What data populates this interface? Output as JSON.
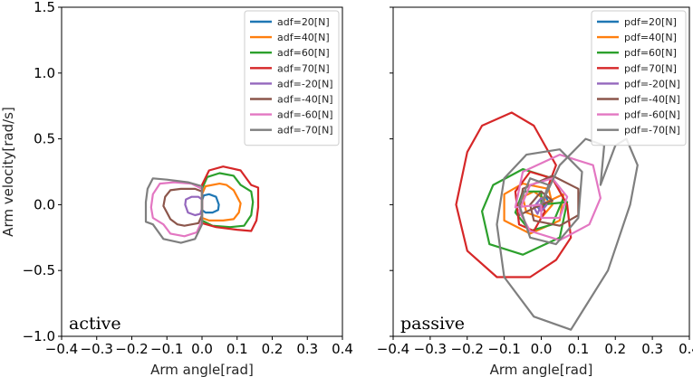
{
  "colors": {
    "series": [
      "#1f77b4",
      "#ff7f0e",
      "#2ca02c",
      "#d62728",
      "#9467bd",
      "#8c564b",
      "#e377c2",
      "#7f7f7f"
    ],
    "axis": "#000000",
    "legend_border": "#cccccc"
  },
  "chart_data": [
    {
      "type": "line",
      "panel_label": "active",
      "xlabel": "Arm angle[rad]",
      "ylabel": "Arm velocity[rad/s]",
      "xlim": [
        -0.4,
        0.4
      ],
      "ylim": [
        -1.0,
        1.5
      ],
      "xticks": [
        "−0.4",
        "−0.3",
        "−0.2",
        "−0.1",
        "0.0",
        "0.1",
        "0.2",
        "0.3",
        "0.4"
      ],
      "yticks": [
        "−1.0",
        "−0.5",
        "0.0",
        "0.5",
        "1.0",
        "1.5"
      ],
      "legend_position": "top-right",
      "grid": false,
      "series": [
        {
          "name": "adf=20[N]",
          "points": [
            [
              0.0,
              -0.04
            ],
            [
              0.0,
              0.03
            ],
            [
              0.005,
              0.07
            ],
            [
              0.02,
              0.08
            ],
            [
              0.04,
              0.06
            ],
            [
              0.048,
              0.0
            ],
            [
              0.046,
              -0.04
            ],
            [
              0.03,
              -0.06
            ],
            [
              0.01,
              -0.06
            ],
            [
              0.0,
              -0.04
            ]
          ]
        },
        {
          "name": "adf=40[N]",
          "points": [
            [
              0.0,
              -0.1
            ],
            [
              0.0,
              0.08
            ],
            [
              0.01,
              0.14
            ],
            [
              0.05,
              0.16
            ],
            [
              0.07,
              0.15
            ],
            [
              0.09,
              0.11
            ],
            [
              0.1,
              0.06
            ],
            [
              0.11,
              0.01
            ],
            [
              0.105,
              -0.06
            ],
            [
              0.09,
              -0.11
            ],
            [
              0.06,
              -0.12
            ],
            [
              0.02,
              -0.12
            ],
            [
              0.0,
              -0.1
            ]
          ]
        },
        {
          "name": "adf=60[N]",
          "points": [
            [
              0.0,
              -0.12
            ],
            [
              0.0,
              0.12
            ],
            [
              0.015,
              0.21
            ],
            [
              0.05,
              0.24
            ],
            [
              0.09,
              0.22
            ],
            [
              0.11,
              0.15
            ],
            [
              0.14,
              0.1
            ],
            [
              0.145,
              0.02
            ],
            [
              0.14,
              -0.08
            ],
            [
              0.12,
              -0.16
            ],
            [
              0.08,
              -0.17
            ],
            [
              0.03,
              -0.16
            ],
            [
              0.0,
              -0.12
            ]
          ]
        },
        {
          "name": "adf=70[N]",
          "points": [
            [
              0.0,
              -0.14
            ],
            [
              0.0,
              0.15
            ],
            [
              0.02,
              0.26
            ],
            [
              0.06,
              0.29
            ],
            [
              0.11,
              0.26
            ],
            [
              0.14,
              0.15
            ],
            [
              0.16,
              0.13
            ],
            [
              0.16,
              -0.02
            ],
            [
              0.155,
              -0.12
            ],
            [
              0.14,
              -0.2
            ],
            [
              0.1,
              -0.19
            ],
            [
              0.04,
              -0.17
            ],
            [
              0.0,
              -0.14
            ]
          ]
        },
        {
          "name": "adf=-20[N]",
          "points": [
            [
              0.0,
              0.04
            ],
            [
              0.0,
              -0.03
            ],
            [
              -0.005,
              -0.07
            ],
            [
              -0.02,
              -0.08
            ],
            [
              -0.04,
              -0.06
            ],
            [
              -0.048,
              0.0
            ],
            [
              -0.046,
              0.04
            ],
            [
              -0.03,
              0.06
            ],
            [
              -0.01,
              0.06
            ],
            [
              0.0,
              0.04
            ]
          ]
        },
        {
          "name": "adf=-40[N]",
          "points": [
            [
              0.0,
              0.1
            ],
            [
              0.0,
              -0.08
            ],
            [
              -0.01,
              -0.14
            ],
            [
              -0.05,
              -0.16
            ],
            [
              -0.07,
              -0.15
            ],
            [
              -0.09,
              -0.11
            ],
            [
              -0.1,
              -0.06
            ],
            [
              -0.11,
              -0.01
            ],
            [
              -0.105,
              0.06
            ],
            [
              -0.09,
              0.11
            ],
            [
              -0.06,
              0.12
            ],
            [
              -0.02,
              0.12
            ],
            [
              0.0,
              0.1
            ]
          ]
        },
        {
          "name": "adf=-60[N]",
          "points": [
            [
              0.0,
              0.12
            ],
            [
              0.0,
              -0.12
            ],
            [
              -0.015,
              -0.21
            ],
            [
              -0.05,
              -0.24
            ],
            [
              -0.09,
              -0.22
            ],
            [
              -0.11,
              -0.15
            ],
            [
              -0.14,
              -0.1
            ],
            [
              -0.145,
              -0.02
            ],
            [
              -0.14,
              0.08
            ],
            [
              -0.12,
              0.16
            ],
            [
              -0.08,
              0.17
            ],
            [
              -0.03,
              0.16
            ],
            [
              0.0,
              0.12
            ]
          ]
        },
        {
          "name": "adf=-70[N]",
          "points": [
            [
              0.0,
              0.14
            ],
            [
              0.0,
              -0.15
            ],
            [
              -0.02,
              -0.26
            ],
            [
              -0.06,
              -0.29
            ],
            [
              -0.11,
              -0.26
            ],
            [
              -0.14,
              -0.15
            ],
            [
              -0.16,
              -0.13
            ],
            [
              -0.16,
              0.02
            ],
            [
              -0.155,
              0.12
            ],
            [
              -0.14,
              0.2
            ],
            [
              -0.1,
              0.19
            ],
            [
              -0.04,
              0.17
            ],
            [
              0.0,
              0.14
            ]
          ]
        }
      ]
    },
    {
      "type": "line",
      "panel_label": "passive",
      "xlabel": "Arm angle[rad]",
      "ylabel": "",
      "xlim": [
        -0.4,
        0.4
      ],
      "ylim": [
        -1.0,
        1.5
      ],
      "xticks": [
        "−0.4",
        "−0.3",
        "−0.2",
        "−0.1",
        "0.0",
        "0.1",
        "0.2",
        "0.3",
        "0.4"
      ],
      "yticks": [],
      "legend_position": "top-right",
      "grid": false,
      "series": [
        {
          "name": "pdf=20[N]",
          "points": [
            [
              0.0,
              0.0
            ],
            [
              0.01,
              0.07
            ],
            [
              0.02,
              0.02
            ],
            [
              0.0,
              -0.05
            ],
            [
              -0.015,
              0.0
            ],
            [
              0.0,
              0.05
            ],
            [
              0.01,
              0.0
            ],
            [
              0.0,
              -0.02
            ],
            [
              0.0,
              0.0
            ]
          ]
        },
        {
          "name": "pdf=40[N]",
          "points": [
            [
              0.0,
              0.0
            ],
            [
              0.06,
              0.08
            ],
            [
              0.05,
              -0.12
            ],
            [
              -0.03,
              -0.22
            ],
            [
              -0.1,
              -0.12
            ],
            [
              -0.1,
              0.08
            ],
            [
              -0.05,
              0.16
            ],
            [
              0.02,
              0.12
            ],
            [
              0.03,
              0.0
            ],
            [
              0.0,
              -0.1
            ],
            [
              -0.04,
              -0.06
            ],
            [
              -0.05,
              0.06
            ],
            [
              -0.02,
              0.1
            ],
            [
              0.01,
              0.04
            ],
            [
              0.0,
              0.0
            ]
          ]
        },
        {
          "name": "pdf=60[N]",
          "points": [
            [
              0.0,
              0.0
            ],
            [
              0.07,
              0.02
            ],
            [
              0.05,
              -0.25
            ],
            [
              -0.05,
              -0.38
            ],
            [
              -0.14,
              -0.3
            ],
            [
              -0.16,
              -0.05
            ],
            [
              -0.13,
              0.15
            ],
            [
              -0.05,
              0.27
            ],
            [
              0.03,
              0.2
            ],
            [
              0.06,
              0.05
            ],
            [
              0.03,
              -0.15
            ],
            [
              -0.03,
              -0.2
            ],
            [
              -0.07,
              -0.06
            ],
            [
              -0.05,
              0.1
            ],
            [
              0.0,
              0.1
            ],
            [
              0.0,
              0.0
            ]
          ]
        },
        {
          "name": "pdf=70[N]",
          "points": [
            [
              0.0,
              0.0
            ],
            [
              0.04,
              0.3
            ],
            [
              -0.02,
              0.6
            ],
            [
              -0.08,
              0.7
            ],
            [
              -0.16,
              0.6
            ],
            [
              -0.2,
              0.4
            ],
            [
              -0.23,
              0.0
            ],
            [
              -0.2,
              -0.35
            ],
            [
              -0.12,
              -0.55
            ],
            [
              -0.03,
              -0.55
            ],
            [
              0.04,
              -0.42
            ],
            [
              0.08,
              -0.25
            ],
            [
              0.07,
              0.0
            ],
            [
              0.03,
              0.2
            ],
            [
              -0.03,
              0.25
            ],
            [
              -0.07,
              0.1
            ],
            [
              -0.06,
              -0.15
            ],
            [
              -0.02,
              -0.2
            ],
            [
              0.01,
              -0.05
            ],
            [
              0.0,
              0.0
            ]
          ]
        },
        {
          "name": "pdf=-20[N]",
          "points": [
            [
              0.0,
              0.0
            ],
            [
              -0.01,
              -0.07
            ],
            [
              -0.02,
              -0.02
            ],
            [
              0.0,
              0.05
            ],
            [
              0.015,
              0.0
            ],
            [
              0.0,
              -0.05
            ],
            [
              -0.01,
              0.0
            ],
            [
              0.0,
              0.0
            ]
          ]
        },
        {
          "name": "pdf=-40[N]",
          "points": [
            [
              0.0,
              0.0
            ],
            [
              -0.06,
              -0.08
            ],
            [
              -0.05,
              0.12
            ],
            [
              0.03,
              0.22
            ],
            [
              0.1,
              0.12
            ],
            [
              0.1,
              -0.08
            ],
            [
              0.05,
              -0.16
            ],
            [
              -0.02,
              -0.12
            ],
            [
              -0.03,
              0.0
            ],
            [
              0.0,
              0.1
            ],
            [
              0.03,
              0.03
            ],
            [
              0.0,
              0.0
            ]
          ]
        },
        {
          "name": "pdf=-60[N]",
          "points": [
            [
              0.0,
              0.0
            ],
            [
              -0.07,
              -0.02
            ],
            [
              -0.05,
              0.25
            ],
            [
              0.05,
              0.38
            ],
            [
              0.14,
              0.3
            ],
            [
              0.16,
              0.05
            ],
            [
              0.13,
              -0.15
            ],
            [
              0.05,
              -0.27
            ],
            [
              -0.03,
              -0.2
            ],
            [
              -0.06,
              -0.05
            ],
            [
              -0.03,
              0.15
            ],
            [
              0.03,
              0.2
            ],
            [
              0.07,
              0.06
            ],
            [
              0.05,
              -0.1
            ],
            [
              0.0,
              -0.1
            ],
            [
              0.0,
              0.0
            ]
          ]
        },
        {
          "name": "pdf=-70[N]",
          "points": [
            [
              0.0,
              0.0
            ],
            [
              0.05,
              0.3
            ],
            [
              0.12,
              0.5
            ],
            [
              0.17,
              0.45
            ],
            [
              0.16,
              0.15
            ],
            [
              0.2,
              0.45
            ],
            [
              0.23,
              0.5
            ],
            [
              0.26,
              0.3
            ],
            [
              0.24,
              0.0
            ],
            [
              0.18,
              -0.5
            ],
            [
              0.08,
              -0.95
            ],
            [
              -0.02,
              -0.85
            ],
            [
              -0.1,
              -0.55
            ],
            [
              -0.12,
              -0.15
            ],
            [
              -0.1,
              0.2
            ],
            [
              -0.04,
              0.38
            ],
            [
              0.05,
              0.42
            ],
            [
              0.11,
              0.25
            ],
            [
              0.1,
              -0.1
            ],
            [
              0.04,
              -0.3
            ],
            [
              -0.03,
              -0.25
            ],
            [
              -0.06,
              0.0
            ],
            [
              -0.03,
              0.2
            ],
            [
              0.02,
              0.15
            ],
            [
              0.0,
              0.0
            ]
          ]
        }
      ]
    }
  ]
}
